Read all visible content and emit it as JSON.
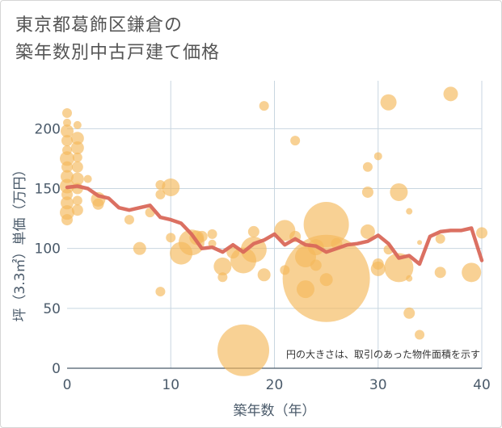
{
  "title": {
    "line1": "東京都葛飾区鎌倉の",
    "line2": "築年数別中古戸建て価格"
  },
  "colors": {
    "bubble": "#f5b95a",
    "line": "#d9685a",
    "grid": "#c8d6e0",
    "axis_text": "#4a5a6a"
  },
  "chart_data": {
    "type": "scatter",
    "xlabel": "築年数（年）",
    "ylabel": "坪（3.3㎡）単価（万円）",
    "xlim": [
      0,
      40
    ],
    "ylim": [
      0,
      240
    ],
    "xticks": [
      0,
      10,
      20,
      30,
      40
    ],
    "yticks": [
      0,
      50,
      100,
      150,
      200
    ],
    "note": "円の大きさは、取引のあった物件面積を示す",
    "bubbles": [
      {
        "x": 0,
        "y": 213,
        "r": 6
      },
      {
        "x": 0,
        "y": 205,
        "r": 5
      },
      {
        "x": 0,
        "y": 198,
        "r": 8
      },
      {
        "x": 0,
        "y": 190,
        "r": 7
      },
      {
        "x": 0,
        "y": 182,
        "r": 6
      },
      {
        "x": 0,
        "y": 175,
        "r": 9
      },
      {
        "x": 0,
        "y": 168,
        "r": 7
      },
      {
        "x": 0,
        "y": 160,
        "r": 8
      },
      {
        "x": 0,
        "y": 152,
        "r": 9
      },
      {
        "x": 0,
        "y": 145,
        "r": 7
      },
      {
        "x": 0,
        "y": 138,
        "r": 8
      },
      {
        "x": 0,
        "y": 130,
        "r": 9
      },
      {
        "x": 0,
        "y": 124,
        "r": 7
      },
      {
        "x": 1,
        "y": 203,
        "r": 5
      },
      {
        "x": 1,
        "y": 192,
        "r": 8
      },
      {
        "x": 1,
        "y": 184,
        "r": 8
      },
      {
        "x": 1,
        "y": 176,
        "r": 6
      },
      {
        "x": 1,
        "y": 168,
        "r": 7
      },
      {
        "x": 1,
        "y": 158,
        "r": 8
      },
      {
        "x": 1,
        "y": 150,
        "r": 7
      },
      {
        "x": 1,
        "y": 140,
        "r": 6
      },
      {
        "x": 1,
        "y": 132,
        "r": 7
      },
      {
        "x": 2,
        "y": 158,
        "r": 5
      },
      {
        "x": 3,
        "y": 141,
        "r": 9
      },
      {
        "x": 3,
        "y": 137,
        "r": 7
      },
      {
        "x": 6,
        "y": 124,
        "r": 6
      },
      {
        "x": 7,
        "y": 100,
        "r": 8
      },
      {
        "x": 8,
        "y": 130,
        "r": 6
      },
      {
        "x": 9,
        "y": 153,
        "r": 6
      },
      {
        "x": 9,
        "y": 145,
        "r": 6
      },
      {
        "x": 9,
        "y": 64,
        "r": 6
      },
      {
        "x": 10,
        "y": 151,
        "r": 11
      },
      {
        "x": 10,
        "y": 109,
        "r": 6
      },
      {
        "x": 11,
        "y": 96,
        "r": 14
      },
      {
        "x": 12,
        "y": 105,
        "r": 16
      },
      {
        "x": 12.5,
        "y": 109,
        "r": 9
      },
      {
        "x": 13,
        "y": 110,
        "r": 7
      },
      {
        "x": 14,
        "y": 112,
        "r": 6
      },
      {
        "x": 14,
        "y": 104,
        "r": 5
      },
      {
        "x": 15,
        "y": 85,
        "r": 11
      },
      {
        "x": 15,
        "y": 76,
        "r": 6
      },
      {
        "x": 16,
        "y": 97,
        "r": 8
      },
      {
        "x": 17,
        "y": 90,
        "r": 16
      },
      {
        "x": 17,
        "y": 15,
        "r": 32
      },
      {
        "x": 18,
        "y": 99,
        "r": 16
      },
      {
        "x": 18,
        "y": 114,
        "r": 7
      },
      {
        "x": 19,
        "y": 219,
        "r": 6
      },
      {
        "x": 19,
        "y": 78,
        "r": 8
      },
      {
        "x": 21,
        "y": 115,
        "r": 13
      },
      {
        "x": 21,
        "y": 82,
        "r": 6
      },
      {
        "x": 22,
        "y": 190,
        "r": 6
      },
      {
        "x": 22,
        "y": 110,
        "r": 7
      },
      {
        "x": 23,
        "y": 93,
        "r": 13
      },
      {
        "x": 23,
        "y": 66,
        "r": 11
      },
      {
        "x": 24,
        "y": 101,
        "r": 10
      },
      {
        "x": 24,
        "y": 86,
        "r": 7
      },
      {
        "x": 25,
        "y": 120,
        "r": 28
      },
      {
        "x": 25,
        "y": 75,
        "r": 54
      },
      {
        "x": 25,
        "y": 74,
        "r": 8
      },
      {
        "x": 26,
        "y": 104,
        "r": 7
      },
      {
        "x": 29,
        "y": 168,
        "r": 6
      },
      {
        "x": 29,
        "y": 147,
        "r": 7
      },
      {
        "x": 29,
        "y": 114,
        "r": 9
      },
      {
        "x": 30,
        "y": 177,
        "r": 5
      },
      {
        "x": 30,
        "y": 87,
        "r": 7
      },
      {
        "x": 30,
        "y": 83,
        "r": 9
      },
      {
        "x": 31,
        "y": 222,
        "r": 10
      },
      {
        "x": 31,
        "y": 99,
        "r": 6
      },
      {
        "x": 32,
        "y": 147,
        "r": 11
      },
      {
        "x": 32,
        "y": 84,
        "r": 18
      },
      {
        "x": 33,
        "y": 131,
        "r": 4
      },
      {
        "x": 33,
        "y": 75,
        "r": 4
      },
      {
        "x": 33,
        "y": 46,
        "r": 7
      },
      {
        "x": 34,
        "y": 105,
        "r": 3
      },
      {
        "x": 34,
        "y": 28,
        "r": 6
      },
      {
        "x": 36,
        "y": 108,
        "r": 6
      },
      {
        "x": 36,
        "y": 80,
        "r": 7
      },
      {
        "x": 37,
        "y": 229,
        "r": 9
      },
      {
        "x": 39,
        "y": 80,
        "r": 12
      },
      {
        "x": 40,
        "y": 113,
        "r": 7
      }
    ],
    "series": [
      {
        "x": [
          0,
          1,
          2,
          3,
          4,
          5,
          6,
          7,
          8,
          9,
          10,
          11,
          12,
          13,
          14,
          15,
          16,
          17,
          18,
          19,
          20,
          21,
          22,
          23,
          24,
          25,
          26,
          27,
          28,
          29,
          30,
          31,
          32,
          33,
          34,
          35,
          36,
          37,
          38,
          39,
          40
        ],
        "values": [
          151,
          152,
          150,
          144,
          142,
          134,
          132,
          134,
          136,
          126,
          124,
          121,
          112,
          100,
          101,
          97,
          103,
          97,
          104,
          107,
          112,
          103,
          108,
          103,
          102,
          97,
          100,
          103,
          104,
          106,
          111,
          104,
          92,
          94,
          87,
          110,
          114,
          115,
          115,
          117,
          90
        ]
      }
    ]
  }
}
